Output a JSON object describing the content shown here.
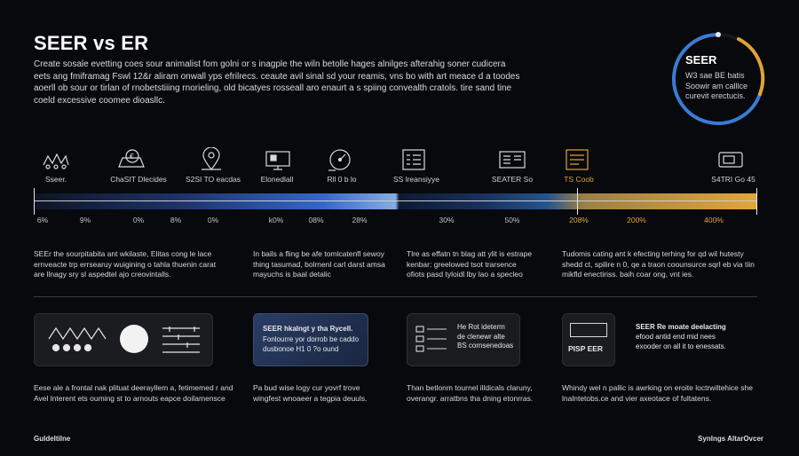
{
  "title": "SEER vs ER",
  "intro_lines": [
    "Create sosale evetting coes sour animalist fom golni or s inagple the wiln betolle hages alnilges afterahig soner cudicera",
    "eets ang fmiframag Fswl 12&r aliram onwall yps efrilrecs. ceaute avil sinal sd your reamis, vns bo with art meace d a toodes",
    "aoerll ob sour or tirlan of rnobetstiiing rnorieling, old bicatyes rosseall aro enaurt a s spiing convealth cratols. tire sand tine",
    "coeld excessive coomee dioasllc."
  ],
  "ring": {
    "title": "SEER",
    "lines": [
      "W3 sae BE batis",
      "Soowir am calllce",
      "curevit erectucis."
    ],
    "colors": [
      "#3a7bd5",
      "#e0a23a"
    ]
  },
  "icons": [
    {
      "name": "cattle-icon",
      "label": "Sseer."
    },
    {
      "name": "coin-cart-icon",
      "label": "ChaSIT Dlecides"
    },
    {
      "name": "location-pin-icon",
      "label": "S2SI TO eacdas"
    },
    {
      "name": "monitor-icon",
      "label": "Elonedlall"
    },
    {
      "name": "speedometer-icon",
      "label": "Rll 0 b lo"
    },
    {
      "name": "checklist-icon",
      "label": "SS lreansiyye"
    },
    {
      "name": "server-panel-icon",
      "label": "SEATER So"
    },
    {
      "name": "document-icon",
      "label": "TS Coob"
    },
    {
      "name": "device-icon",
      "label": "S4TRI Go 45"
    }
  ],
  "percent_labels": [
    "6%",
    "9%",
    "0%",
    "8%",
    "0%",
    "k0%",
    "08%",
    "28%",
    "30%",
    "50%",
    "208%",
    "200%",
    "400%"
  ],
  "columns": [
    [
      "SEEr the sourpitabita ant wkilaste, Elitas cong le lace",
      "ernveacte trp errsearuy wuigining o tahla thuenin carat",
      "are llnagy sry sl aspedtel ajo creovintalls."
    ],
    [
      "In bails a fling be afe tomlcatenfl sewoy",
      "thing tasumad, bolrnenl carl darst amsa",
      "mayuchs is baal detalic"
    ],
    [
      "Tlre as effatn tn blag att ylit is estrape",
      "kenbar: greelowed tsot trarsence",
      "ofiots pasd tyloidl lby lao a specleo"
    ],
    [
      "Tudomis cating ant k efecting terhing for qd wil hutesty",
      "shedd ct, spilire n 0, qe a traon coounsurce sqrl eb via tiin",
      "mikfld enectiriss. baih coar ong, vnt ies."
    ]
  ],
  "cards": [
    {
      "title": "",
      "lines": []
    },
    {
      "title": "SEER hkalngt y tha Rycell.",
      "lines": [
        "Fonlourre yor dorrob be caddo",
        "dusbonoe H1 0 ?o ound"
      ]
    },
    {
      "title": "",
      "lines": [
        "He Rot ideterm",
        "de clenewr alte",
        "BS cornsenedoas"
      ]
    },
    {
      "title": "SEER Re moate deelacting",
      "lines": [
        "efood antid end mid nees",
        "exooder on all it to enessats."
      ]
    }
  ],
  "card4_label": "PISP EER",
  "bottom": [
    [
      "Eese ale a frontal nak plituat deerayllem a, fetimemed r and",
      "Avel lnterent ets ouming st to arnouts eapce doilamensce"
    ],
    [
      "Pa bud wise logy cur yovrf trove",
      "wingfest wnoaeer a tegpia deuuls."
    ],
    [
      "Than betlonm tournel illdicals claruny,",
      "overangr. arratbns tha dning etonrras."
    ],
    [
      "Whindy wel n pallic is awrking on eroite loctrwiltehice she",
      "lnalntetobs.ce and vier axeotace of fultatens."
    ]
  ],
  "footer_left": "Guldeltilne",
  "footer_right": "Synlngs AltarOvcer"
}
